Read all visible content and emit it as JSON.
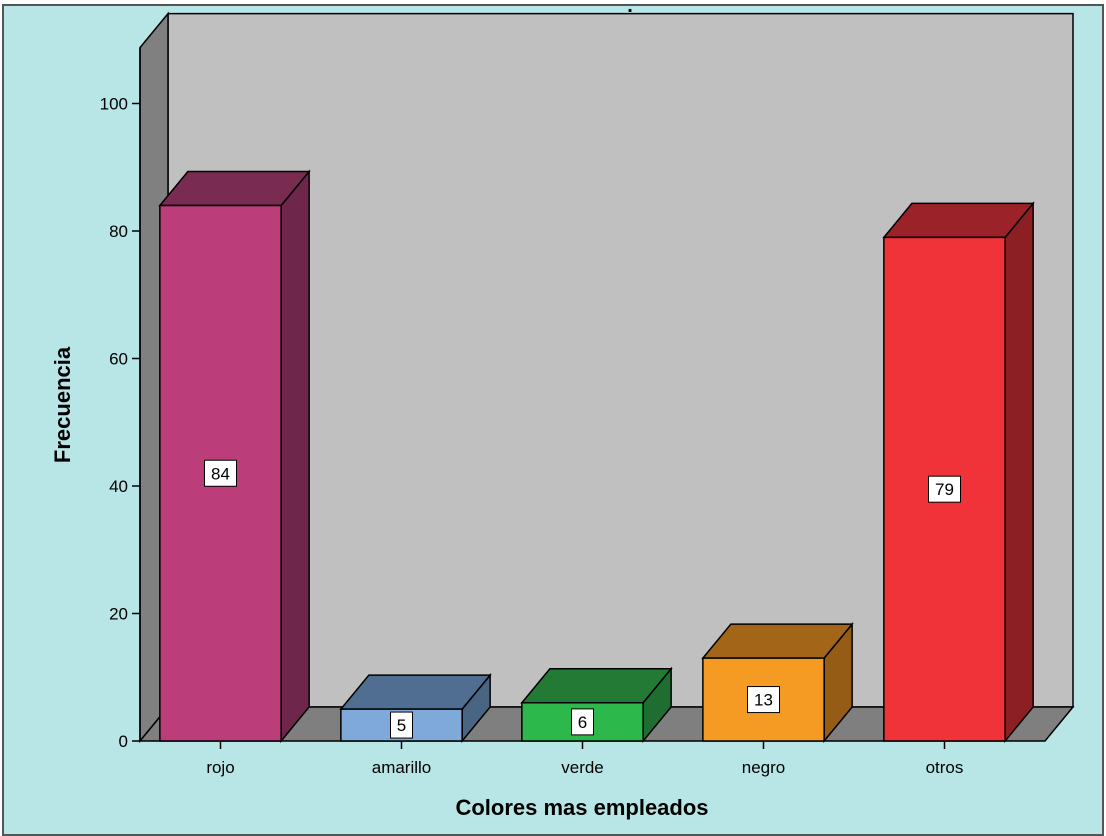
{
  "chart_data": {
    "type": "bar",
    "title": ".",
    "xlabel": "Colores mas empleados",
    "ylabel": "Frecuencia",
    "ylim": [
      0,
      105
    ],
    "yticks": [
      0,
      20,
      40,
      60,
      80,
      100
    ],
    "categories": [
      "rojo",
      "amarillo",
      "verde",
      "negro",
      "otros"
    ],
    "values": [
      84,
      5,
      6,
      13,
      79
    ],
    "data_labels": [
      "84",
      "5",
      "6",
      "13",
      "79"
    ],
    "bar_colors": [
      "#bb3e7b",
      "#7fa9d8",
      "#2db84c",
      "#f59a22",
      "#ef3339"
    ],
    "bar_side_colors": [
      "#6e274a",
      "#4a6584",
      "#1e6e31",
      "#955c15",
      "#8c1f24"
    ],
    "bar_top_colors": [
      "#7a2b52",
      "#506e91",
      "#227a35",
      "#a36517",
      "#9a2228"
    ],
    "colors": {
      "background": "#b8e6e6",
      "plot_back": "#c0c0c0",
      "plot_wall": "#808080",
      "plot_floor": "#7f7f7f"
    },
    "grid": false,
    "legend": "none",
    "style": "3d"
  }
}
